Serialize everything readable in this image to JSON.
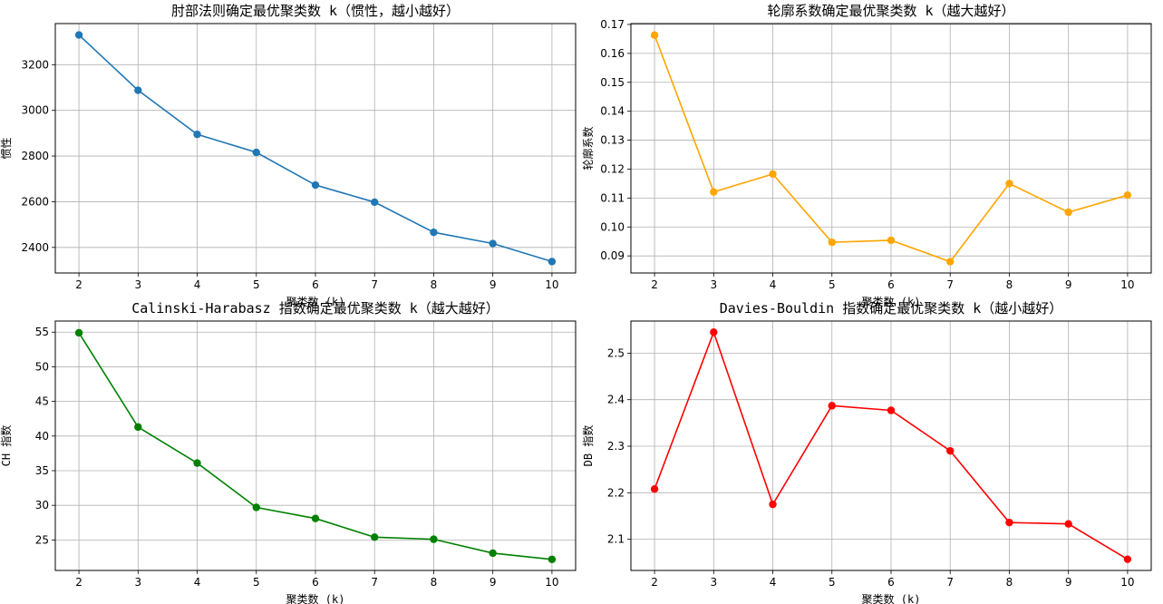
{
  "chart_data": [
    {
      "type": "line",
      "title": "肘部法则确定最优聚类数 k（惯性，越小越好）",
      "xlabel": "聚类数 (k)",
      "ylabel": "惯性",
      "color": "#1f77b4",
      "x": [
        2,
        3,
        4,
        5,
        6,
        7,
        8,
        9,
        10
      ],
      "series": [
        {
          "values": [
            3330,
            3088,
            2895,
            2816,
            2673,
            2598,
            2466,
            2417,
            2338
          ]
        }
      ],
      "xlim": [
        1.6,
        10.4
      ],
      "ylim": [
        2288,
        3380
      ],
      "yticks": [
        2400,
        2600,
        2800,
        3000,
        3200
      ],
      "ytick_labels": [
        "2400",
        "2600",
        "2800",
        "3000",
        "3200"
      ],
      "grid": true
    },
    {
      "type": "line",
      "title": "轮廓系数确定最优聚类数 k（越大越好）",
      "xlabel": "聚类数 (k)",
      "ylabel": "轮廓系数",
      "color": "#ffa500",
      "x": [
        2,
        3,
        4,
        5,
        6,
        7,
        8,
        9,
        10
      ],
      "series": [
        {
          "values": [
            0.1663,
            0.1121,
            0.1183,
            0.0947,
            0.0954,
            0.088,
            0.115,
            0.1051,
            0.111
          ]
        }
      ],
      "xlim": [
        1.6,
        10.4
      ],
      "ylim": [
        0.0841,
        0.1703
      ],
      "yticks": [
        0.09,
        0.1,
        0.11,
        0.12,
        0.13,
        0.14,
        0.15,
        0.16,
        0.17
      ],
      "ytick_labels": [
        "0.09",
        "0.10",
        "0.11",
        "0.12",
        "0.13",
        "0.14",
        "0.15",
        "0.16",
        "0.17"
      ],
      "grid": true
    },
    {
      "type": "line",
      "title": "Calinski-Harabasz 指数确定最优聚类数 k（越大越好）",
      "xlabel": "聚类数 (k)",
      "ylabel": "CH 指数",
      "color": "#008000",
      "x": [
        2,
        3,
        4,
        5,
        6,
        7,
        8,
        9,
        10
      ],
      "series": [
        {
          "values": [
            54.9,
            41.3,
            36.1,
            29.7,
            28.1,
            25.4,
            25.1,
            23.1,
            22.2
          ]
        }
      ],
      "xlim": [
        1.6,
        10.4
      ],
      "ylim": [
        20.6,
        56.6
      ],
      "yticks": [
        25,
        30,
        35,
        40,
        45,
        50,
        55
      ],
      "ytick_labels": [
        "25",
        "30",
        "35",
        "40",
        "45",
        "50",
        "55"
      ],
      "grid": true
    },
    {
      "type": "line",
      "title": "Davies-Bouldin 指数确定最优聚类数 k（越小越好）",
      "xlabel": "聚类数 (k)",
      "ylabel": "DB 指数",
      "color": "#ff0000",
      "x": [
        2,
        3,
        4,
        5,
        6,
        7,
        8,
        9,
        10
      ],
      "series": [
        {
          "values": [
            2.208,
            2.545,
            2.175,
            2.387,
            2.377,
            2.29,
            2.136,
            2.133,
            2.057
          ]
        }
      ],
      "xlim": [
        1.6,
        10.4
      ],
      "ylim": [
        2.033,
        2.569
      ],
      "yticks": [
        2.1,
        2.2,
        2.3,
        2.4,
        2.5
      ],
      "ytick_labels": [
        "2.1",
        "2.2",
        "2.3",
        "2.4",
        "2.5"
      ],
      "grid": true
    }
  ]
}
